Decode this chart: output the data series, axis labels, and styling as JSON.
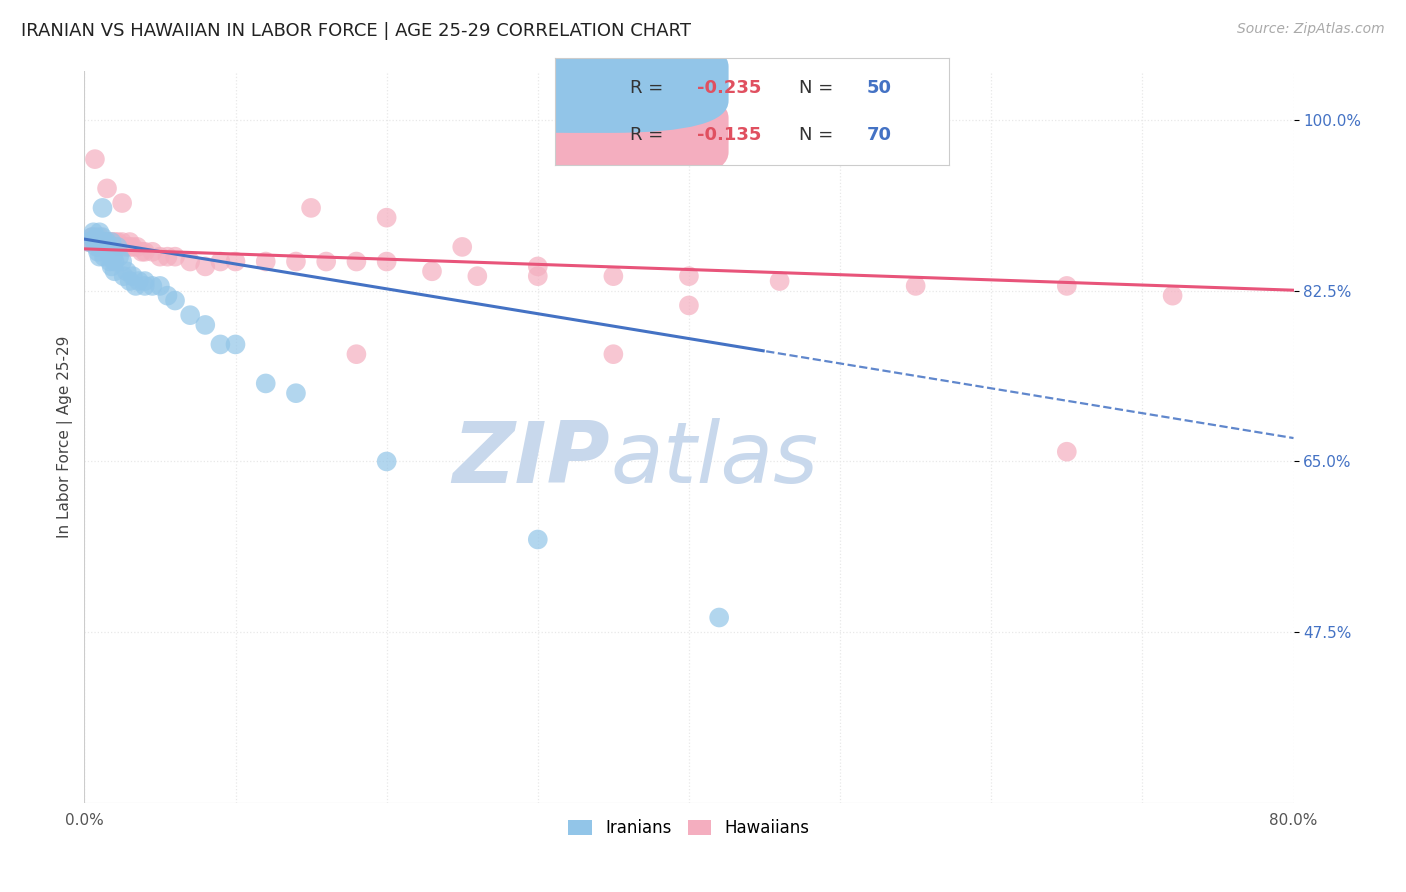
{
  "title": "IRANIAN VS HAWAIIAN IN LABOR FORCE | AGE 25-29 CORRELATION CHART",
  "source_text": "Source: ZipAtlas.com",
  "ylabel": "In Labor Force | Age 25-29",
  "xlim": [
    0.0,
    0.8
  ],
  "ylim": [
    0.3,
    1.05
  ],
  "x_ticks": [
    0.0,
    0.1,
    0.2,
    0.3,
    0.4,
    0.5,
    0.6,
    0.7,
    0.8
  ],
  "x_tick_labels": [
    "0.0%",
    "",
    "",
    "",
    "",
    "",
    "",
    "",
    "80.0%"
  ],
  "y_ticks": [
    0.475,
    0.65,
    0.825,
    1.0
  ],
  "y_tick_labels": [
    "47.5%",
    "65.0%",
    "82.5%",
    "100.0%"
  ],
  "iranian_color": "#92C5E8",
  "hawaiian_color": "#F4AEBF",
  "iranian_line_color": "#4472C4",
  "hawaiian_line_color": "#E8547A",
  "watermark_zip": "ZIP",
  "watermark_atlas": "atlas",
  "watermark_color": "#C8D8EC",
  "background_color": "#FFFFFF",
  "grid_color": "#E8E8E8",
  "tick_label_color_y": "#4472C4",
  "iranian_line_intercept": 0.878,
  "iranian_line_slope": -0.255,
  "iranian_line_split": 0.45,
  "hawaiian_line_intercept": 0.868,
  "hawaiian_line_slope": -0.053,
  "iranian_x": [
    0.003,
    0.005,
    0.006,
    0.007,
    0.008,
    0.008,
    0.009,
    0.009,
    0.01,
    0.01,
    0.01,
    0.01,
    0.012,
    0.012,
    0.013,
    0.013,
    0.014,
    0.015,
    0.015,
    0.016,
    0.017,
    0.018,
    0.018,
    0.019,
    0.02,
    0.02,
    0.022,
    0.023,
    0.025,
    0.026,
    0.028,
    0.03,
    0.032,
    0.034,
    0.036,
    0.04,
    0.04,
    0.045,
    0.05,
    0.055,
    0.06,
    0.07,
    0.08,
    0.09,
    0.1,
    0.12,
    0.14,
    0.2,
    0.3,
    0.42
  ],
  "iranian_y": [
    0.875,
    0.88,
    0.885,
    0.875,
    0.87,
    0.88,
    0.875,
    0.865,
    0.86,
    0.87,
    0.875,
    0.885,
    0.91,
    0.88,
    0.875,
    0.86,
    0.875,
    0.875,
    0.87,
    0.865,
    0.855,
    0.85,
    0.875,
    0.86,
    0.855,
    0.845,
    0.87,
    0.86,
    0.855,
    0.84,
    0.845,
    0.835,
    0.84,
    0.83,
    0.835,
    0.83,
    0.835,
    0.83,
    0.83,
    0.82,
    0.815,
    0.8,
    0.79,
    0.77,
    0.77,
    0.73,
    0.72,
    0.65,
    0.57,
    0.49
  ],
  "hawaiian_x": [
    0.003,
    0.004,
    0.005,
    0.005,
    0.006,
    0.006,
    0.007,
    0.007,
    0.008,
    0.008,
    0.009,
    0.009,
    0.01,
    0.01,
    0.01,
    0.011,
    0.012,
    0.012,
    0.013,
    0.014,
    0.015,
    0.015,
    0.016,
    0.017,
    0.018,
    0.02,
    0.02,
    0.022,
    0.024,
    0.025,
    0.027,
    0.03,
    0.03,
    0.032,
    0.035,
    0.038,
    0.04,
    0.045,
    0.05,
    0.055,
    0.06,
    0.07,
    0.08,
    0.09,
    0.1,
    0.12,
    0.14,
    0.16,
    0.18,
    0.2,
    0.23,
    0.26,
    0.3,
    0.35,
    0.4,
    0.46,
    0.55,
    0.65,
    0.72,
    0.65,
    0.007,
    0.015,
    0.025,
    0.18,
    0.35,
    0.4,
    0.3,
    0.25,
    0.2,
    0.15
  ],
  "hawaiian_y": [
    0.875,
    0.875,
    0.875,
    0.88,
    0.875,
    0.88,
    0.875,
    0.875,
    0.875,
    0.875,
    0.875,
    0.875,
    0.875,
    0.88,
    0.875,
    0.875,
    0.875,
    0.875,
    0.875,
    0.875,
    0.875,
    0.875,
    0.875,
    0.875,
    0.875,
    0.875,
    0.87,
    0.875,
    0.87,
    0.875,
    0.87,
    0.875,
    0.87,
    0.87,
    0.87,
    0.865,
    0.865,
    0.865,
    0.86,
    0.86,
    0.86,
    0.855,
    0.85,
    0.855,
    0.855,
    0.855,
    0.855,
    0.855,
    0.855,
    0.855,
    0.845,
    0.84,
    0.84,
    0.84,
    0.84,
    0.835,
    0.83,
    0.83,
    0.82,
    0.66,
    0.96,
    0.93,
    0.915,
    0.76,
    0.76,
    0.81,
    0.85,
    0.87,
    0.9,
    0.91
  ]
}
